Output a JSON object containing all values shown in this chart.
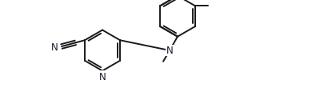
{
  "bg_color": "#ffffff",
  "line_color": "#1a1a1a",
  "atom_color": "#1a1a2e",
  "bond_lw": 1.4,
  "sep": 0.014,
  "font_size": 8.0,
  "figsize": [
    3.9,
    1.16
  ],
  "dpi": 100,
  "xlim": [
    0.0,
    3.9
  ],
  "ylim": [
    0.0,
    1.16
  ]
}
